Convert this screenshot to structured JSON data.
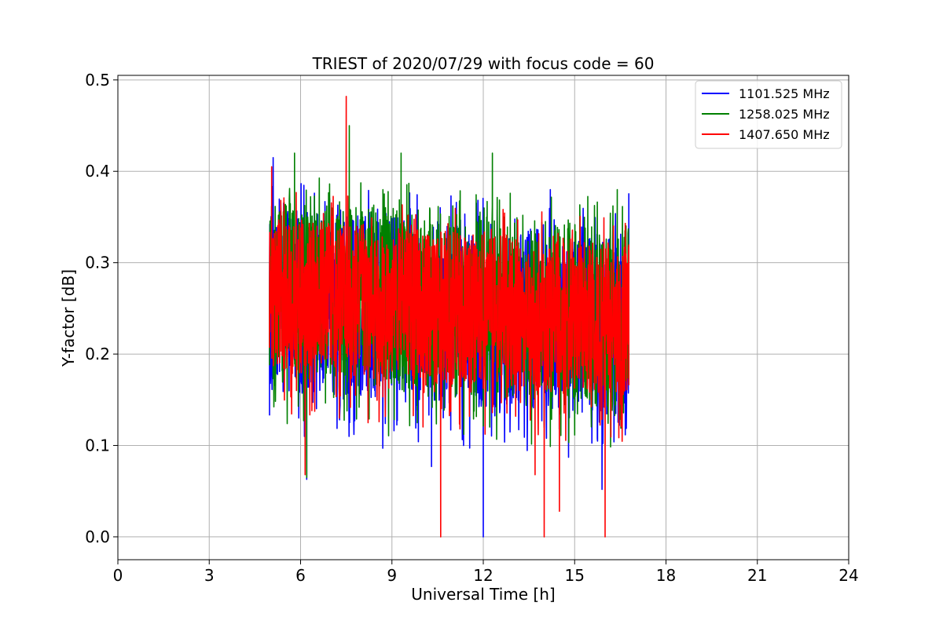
{
  "chart_data": {
    "type": "line",
    "title": "TRIEST of 2020/07/29 with focus code = 60",
    "xlabel": "Universal Time [h]",
    "ylabel": "Y-factor [dB]",
    "xlim": [
      0,
      24
    ],
    "ylim": [
      -0.025,
      0.505
    ],
    "xticks": [
      0,
      3,
      6,
      9,
      12,
      15,
      18,
      21,
      24
    ],
    "xtick_labels": [
      "0",
      "3",
      "6",
      "9",
      "12",
      "15",
      "18",
      "21",
      "24"
    ],
    "yticks": [
      0.0,
      0.1,
      0.2,
      0.3,
      0.4,
      0.5
    ],
    "ytick_labels": [
      "0.0",
      "0.1",
      "0.2",
      "0.3",
      "0.4",
      "0.5"
    ],
    "grid": true,
    "legend_position": "top-right",
    "x_range": [
      4.98,
      16.78
    ],
    "series": [
      {
        "name": "1101.525 MHz",
        "color": "#0000ff",
        "x": [
          4.98,
          5.1,
          6.2,
          8.7,
          10.3,
          12.0,
          14.2,
          15.9,
          16.78
        ],
        "y": [
          0.28,
          0.415,
          0.063,
          0.097,
          0.077,
          0.0,
          0.38,
          0.052,
          0.376
        ],
        "typical_band": [
          0.16,
          0.36
        ]
      },
      {
        "name": "1258.025 MHz",
        "color": "#008000",
        "x": [
          4.98,
          5.8,
          6.2,
          7.6,
          9.3,
          12.3,
          14.0,
          16.4,
          16.78
        ],
        "y": [
          0.26,
          0.42,
          0.065,
          0.45,
          0.42,
          0.42,
          0.12,
          0.38,
          0.23
        ],
        "typical_band": [
          0.17,
          0.37
        ]
      },
      {
        "name": "1407.650 MHz",
        "color": "#ff0000",
        "x": [
          4.98,
          5.05,
          6.15,
          7.5,
          10.6,
          13.7,
          14.0,
          14.5,
          16.0,
          16.78
        ],
        "y": [
          0.25,
          0.405,
          0.068,
          0.482,
          0.0,
          0.068,
          0.0,
          0.028,
          0.0,
          0.32
        ],
        "typical_band": [
          0.18,
          0.35
        ]
      }
    ]
  },
  "colors": {
    "grid": "#b0b0b0",
    "axes": "#000000",
    "background": "#ffffff"
  }
}
